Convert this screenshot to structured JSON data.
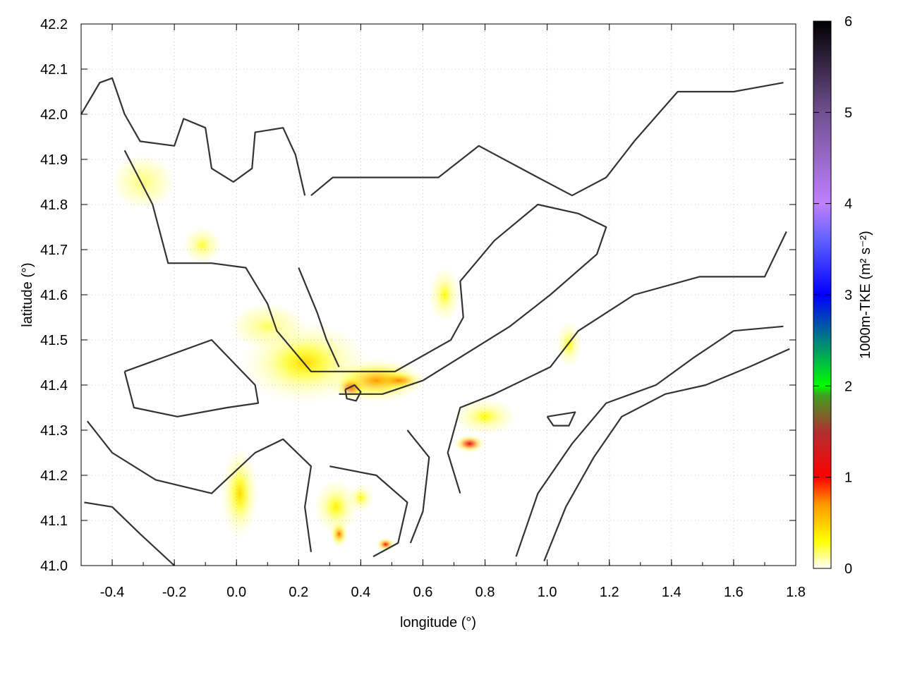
{
  "chart_data": {
    "type": "heatmap",
    "title": "",
    "xlabel": "longitude (°)",
    "ylabel": "latitude (°)",
    "xlim": [
      -0.5,
      1.8
    ],
    "ylim": [
      41.0,
      42.2
    ],
    "xticks": [
      "-0.4",
      "-0.2",
      "0.0",
      "0.2",
      "0.4",
      "0.6",
      "0.8",
      "1.0",
      "1.2",
      "1.4",
      "1.6",
      "1.8"
    ],
    "xtick_values": [
      -0.4,
      -0.2,
      0.0,
      0.2,
      0.4,
      0.6,
      0.8,
      1.0,
      1.2,
      1.4,
      1.6,
      1.8
    ],
    "yticks": [
      "41.0",
      "41.1",
      "41.2",
      "41.3",
      "41.4",
      "41.5",
      "41.6",
      "41.7",
      "41.8",
      "41.9",
      "42.0",
      "42.1",
      "42.2"
    ],
    "ytick_values": [
      41.0,
      41.1,
      41.2,
      41.3,
      41.4,
      41.5,
      41.6,
      41.7,
      41.8,
      41.9,
      42.0,
      42.1,
      42.2
    ],
    "grid": true,
    "colorbar": {
      "label": "1000m-TKE (m² s⁻²)",
      "label_main": "1000m-TKE (m",
      "label_sup1": "2",
      "label_mid": " s",
      "label_sup2": "-2",
      "label_end": ")",
      "range": [
        0,
        6
      ],
      "ticks": [
        "0",
        "1",
        "2",
        "3",
        "4",
        "5",
        "6"
      ],
      "tick_values": [
        0,
        1,
        2,
        3,
        4,
        5,
        6
      ],
      "stops": [
        {
          "v": 0,
          "c": "#ffffff"
        },
        {
          "v": 0.3,
          "c": "#ffff00"
        },
        {
          "v": 0.7,
          "c": "#ff9900"
        },
        {
          "v": 1.0,
          "c": "#ff0000"
        },
        {
          "v": 1.5,
          "c": "#b03030"
        },
        {
          "v": 1.9,
          "c": "#40a020"
        },
        {
          "v": 2.0,
          "c": "#00ff00"
        },
        {
          "v": 2.5,
          "c": "#008080"
        },
        {
          "v": 3.0,
          "c": "#0000ff"
        },
        {
          "v": 3.6,
          "c": "#6060ff"
        },
        {
          "v": 4.0,
          "c": "#c080ff"
        },
        {
          "v": 5.0,
          "c": "#705090"
        },
        {
          "v": 6.0,
          "c": "#000000"
        }
      ]
    },
    "tke_hotspots": [
      {
        "lon": 0.22,
        "lat": 41.45,
        "value": 0.45,
        "dlon": 0.2,
        "dlat": 0.09
      },
      {
        "lon": 0.37,
        "lat": 41.395,
        "value": 1.25,
        "dlon": 0.05,
        "dlat": 0.025
      },
      {
        "lon": 0.52,
        "lat": 41.41,
        "value": 1.15,
        "dlon": 0.08,
        "dlat": 0.02
      },
      {
        "lon": 0.45,
        "lat": 41.41,
        "value": 0.7,
        "dlon": 0.16,
        "dlat": 0.05
      },
      {
        "lon": 0.75,
        "lat": 41.27,
        "value": 1.2,
        "dlon": 0.05,
        "dlat": 0.02
      },
      {
        "lon": 0.8,
        "lat": 41.33,
        "value": 0.3,
        "dlon": 0.1,
        "dlat": 0.04
      },
      {
        "lon": 0.48,
        "lat": 41.047,
        "value": 1.1,
        "dlon": 0.03,
        "dlat": 0.015
      },
      {
        "lon": 0.33,
        "lat": 41.07,
        "value": 0.8,
        "dlon": 0.03,
        "dlat": 0.03
      },
      {
        "lon": 0.32,
        "lat": 41.13,
        "value": 0.35,
        "dlon": 0.07,
        "dlat": 0.06
      },
      {
        "lon": 0.4,
        "lat": 41.15,
        "value": 0.3,
        "dlon": 0.04,
        "dlat": 0.03
      },
      {
        "lon": 0.01,
        "lat": 41.16,
        "value": 0.45,
        "dlon": 0.06,
        "dlat": 0.1
      },
      {
        "lon": -0.11,
        "lat": 41.71,
        "value": 0.25,
        "dlon": 0.06,
        "dlat": 0.04
      },
      {
        "lon": 0.67,
        "lat": 41.6,
        "value": 0.3,
        "dlon": 0.05,
        "dlat": 0.06
      },
      {
        "lon": 1.07,
        "lat": 41.49,
        "value": 0.3,
        "dlon": 0.04,
        "dlat": 0.05
      },
      {
        "lon": 0.1,
        "lat": 41.53,
        "value": 0.2,
        "dlon": 0.12,
        "dlat": 0.05
      },
      {
        "lon": -0.3,
        "lat": 41.85,
        "value": 0.12,
        "dlon": 0.1,
        "dlat": 0.06
      }
    ],
    "contours": [
      [
        [
          -0.36,
          41.92
        ],
        [
          -0.27,
          41.8
        ],
        [
          -0.22,
          41.67
        ],
        [
          -0.08,
          41.67
        ],
        [
          0.03,
          41.66
        ],
        [
          0.1,
          41.58
        ],
        [
          0.13,
          41.52
        ],
        [
          0.24,
          41.43
        ],
        [
          0.33,
          41.43
        ],
        [
          0.51,
          41.43
        ],
        [
          0.69,
          41.5
        ],
        [
          0.73,
          41.55
        ],
        [
          0.72,
          41.63
        ],
        [
          0.83,
          41.72
        ],
        [
          0.97,
          41.8
        ],
        [
          1.1,
          41.78
        ],
        [
          1.19,
          41.75
        ],
        [
          1.16,
          41.69
        ],
        [
          1.01,
          41.6
        ],
        [
          0.88,
          41.53
        ],
        [
          0.74,
          41.47
        ],
        [
          0.6,
          41.41
        ],
        [
          0.47,
          41.38
        ],
        [
          0.33,
          41.38
        ]
      ],
      [
        [
          1.77,
          41.74
        ],
        [
          1.7,
          41.64
        ],
        [
          1.49,
          41.64
        ],
        [
          1.28,
          41.6
        ],
        [
          1.1,
          41.52
        ],
        [
          1.01,
          41.44
        ],
        [
          0.83,
          41.38
        ],
        [
          0.72,
          41.35
        ],
        [
          0.68,
          41.25
        ],
        [
          0.72,
          41.16
        ]
      ],
      [
        [
          0.99,
          41.01
        ],
        [
          1.06,
          41.13
        ],
        [
          1.15,
          41.24
        ],
        [
          1.24,
          41.33
        ],
        [
          1.38,
          41.38
        ],
        [
          1.51,
          41.4
        ],
        [
          1.65,
          41.44
        ],
        [
          1.78,
          41.48
        ]
      ],
      [
        [
          0.9,
          41.02
        ],
        [
          0.97,
          41.16
        ],
        [
          1.08,
          41.27
        ],
        [
          1.19,
          41.36
        ],
        [
          1.35,
          41.4
        ],
        [
          1.47,
          41.46
        ],
        [
          1.6,
          41.52
        ],
        [
          1.76,
          41.53
        ]
      ],
      [
        [
          -0.5,
          42.0
        ],
        [
          -0.44,
          42.07
        ],
        [
          -0.4,
          42.08
        ],
        [
          -0.36,
          42.0
        ],
        [
          -0.31,
          41.94
        ],
        [
          -0.2,
          41.93
        ],
        [
          -0.17,
          41.99
        ],
        [
          -0.1,
          41.97
        ],
        [
          -0.08,
          41.88
        ],
        [
          -0.01,
          41.85
        ],
        [
          0.05,
          41.88
        ],
        [
          0.06,
          41.96
        ],
        [
          0.15,
          41.97
        ],
        [
          0.19,
          41.91
        ],
        [
          0.22,
          41.82
        ]
      ],
      [
        [
          0.24,
          41.82
        ],
        [
          0.31,
          41.86
        ],
        [
          0.47,
          41.86
        ],
        [
          0.65,
          41.86
        ],
        [
          0.78,
          41.93
        ],
        [
          0.97,
          41.86
        ],
        [
          1.08,
          41.82
        ],
        [
          1.19,
          41.86
        ],
        [
          1.28,
          41.94
        ],
        [
          1.42,
          42.05
        ],
        [
          1.6,
          42.05
        ],
        [
          1.76,
          42.07
        ]
      ],
      [
        [
          -0.48,
          41.32
        ],
        [
          -0.4,
          41.25
        ],
        [
          -0.26,
          41.19
        ],
        [
          -0.08,
          41.16
        ],
        [
          0.06,
          41.25
        ],
        [
          0.15,
          41.28
        ],
        [
          0.24,
          41.22
        ],
        [
          0.22,
          41.13
        ],
        [
          0.24,
          41.03
        ]
      ],
      [
        [
          -0.49,
          41.14
        ],
        [
          -0.4,
          41.13
        ],
        [
          -0.31,
          41.07
        ],
        [
          -0.2,
          41.0
        ]
      ],
      [
        [
          -0.36,
          41.43
        ],
        [
          -0.24,
          41.46
        ],
        [
          -0.08,
          41.5
        ],
        [
          0.06,
          41.4
        ],
        [
          0.07,
          41.36
        ],
        [
          -0.03,
          41.35
        ],
        [
          -0.19,
          41.33
        ],
        [
          -0.33,
          41.35
        ],
        [
          -0.36,
          41.43
        ]
      ],
      [
        [
          0.35,
          41.39
        ],
        [
          0.38,
          41.4
        ],
        [
          0.4,
          41.385
        ],
        [
          0.385,
          41.365
        ],
        [
          0.355,
          41.37
        ],
        [
          0.35,
          41.39
        ]
      ],
      [
        [
          1.0,
          41.33
        ],
        [
          1.09,
          41.34
        ],
        [
          1.07,
          41.31
        ],
        [
          1.02,
          41.31
        ],
        [
          1.0,
          41.33
        ]
      ],
      [
        [
          0.2,
          41.66
        ],
        [
          0.26,
          41.56
        ],
        [
          0.29,
          41.5
        ],
        [
          0.33,
          41.44
        ]
      ],
      [
        [
          0.55,
          41.3
        ],
        [
          0.62,
          41.24
        ],
        [
          0.6,
          41.12
        ],
        [
          0.56,
          41.05
        ]
      ],
      [
        [
          0.3,
          41.22
        ],
        [
          0.45,
          41.2
        ],
        [
          0.55,
          41.14
        ],
        [
          0.52,
          41.05
        ],
        [
          0.44,
          41.02
        ]
      ]
    ]
  }
}
